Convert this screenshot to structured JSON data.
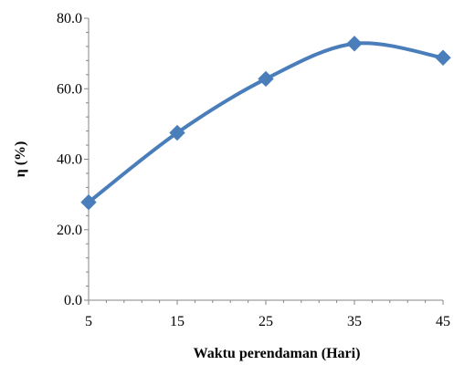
{
  "chart_data": {
    "type": "line",
    "title": "",
    "xlabel": "Waktu perendaman (Hari)",
    "ylabel": "η  (%)",
    "x": [
      5,
      15,
      25,
      35,
      45
    ],
    "series": [
      {
        "values": [
          27.8,
          47.5,
          62.8,
          72.8,
          68.8
        ]
      }
    ],
    "xlim": [
      5,
      45
    ],
    "ylim": [
      0,
      80
    ],
    "xticks": [
      "5",
      "15",
      "25",
      "35",
      "45"
    ],
    "yticks": [
      "0.0",
      "20.0",
      "40.0",
      "60.0",
      "80.0"
    ],
    "grid": false,
    "legend": "none",
    "smooth": true,
    "marker": "diamond",
    "colors": {
      "series": "#4a7ebb",
      "axis": "#868686"
    }
  }
}
